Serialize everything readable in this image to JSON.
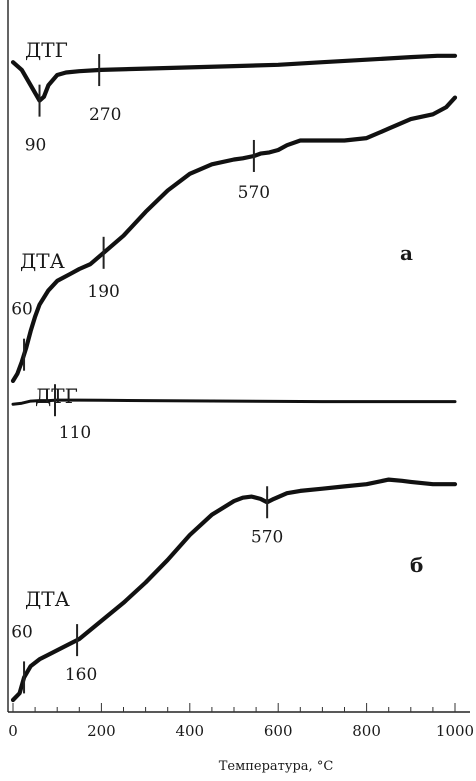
{
  "chart_data": {
    "type": "line",
    "xlabel": "Температура, °C",
    "xlim": [
      0,
      1000
    ],
    "x_ticks": [
      "0",
      "200",
      "400",
      "600",
      "800",
      "1000"
    ],
    "panels": [
      {
        "label": "а",
        "series": [
          {
            "name": "ДТГ",
            "x": [
              0,
              20,
              40,
              60,
              70,
              80,
              100,
              120,
              150,
              200,
              300,
              400,
              500,
              600,
              700,
              800,
              900,
              960,
              1000
            ],
            "y": [
              0.92,
              0.86,
              0.74,
              0.62,
              0.65,
              0.74,
              0.82,
              0.84,
              0.85,
              0.86,
              0.87,
              0.88,
              0.89,
              0.9,
              0.92,
              0.94,
              0.96,
              0.97,
              0.97
            ],
            "annotations": [
              {
                "label": "90",
                "x": 60
              },
              {
                "label": "270",
                "x": 195
              }
            ]
          },
          {
            "name": "ДТА",
            "x": [
              0,
              10,
              20,
              30,
              40,
              50,
              60,
              80,
              100,
              130,
              150,
              175,
              200,
              250,
              300,
              350,
              400,
              450,
              500,
              520,
              545,
              560,
              580,
              600,
              620,
              650,
              680,
              700,
              750,
              800,
              850,
              900,
              950,
              980,
              1000
            ],
            "y": [
              0.03,
              0.06,
              0.11,
              0.17,
              0.24,
              0.3,
              0.35,
              0.41,
              0.45,
              0.48,
              0.5,
              0.52,
              0.56,
              0.64,
              0.74,
              0.83,
              0.9,
              0.94,
              0.96,
              0.965,
              0.975,
              0.985,
              0.99,
              1.0,
              1.02,
              1.04,
              1.04,
              1.04,
              1.04,
              1.05,
              1.09,
              1.13,
              1.15,
              1.18,
              1.22
            ],
            "annotations": [
              {
                "label": "60",
                "x": 25
              },
              {
                "label": "190",
                "x": 205
              },
              {
                "label": "570",
                "x": 545
              }
            ]
          }
        ]
      },
      {
        "label": "б",
        "series": [
          {
            "name": "ДТГ",
            "x": [
              0,
              20,
              40,
              60,
              80,
              100,
              150,
              200,
              300,
              400,
              500,
              600,
              700,
              800,
              900,
              1000
            ],
            "y": [
              0.88,
              0.9,
              0.94,
              0.95,
              0.95,
              0.96,
              0.96,
              0.955,
              0.95,
              0.945,
              0.94,
              0.935,
              0.93,
              0.93,
              0.93,
              0.93
            ],
            "annotations": [
              {
                "label": "110",
                "x": 95
              }
            ]
          },
          {
            "name": "ДТА",
            "x": [
              0,
              15,
              25,
              40,
              60,
              80,
              100,
              120,
              150,
              200,
              250,
              300,
              350,
              400,
              450,
              500,
              520,
              540,
              560,
              575,
              590,
              620,
              650,
              700,
              750,
              800,
              850,
              880,
              900,
              950,
              1000
            ],
            "y": [
              0.0,
              0.03,
              0.1,
              0.15,
              0.18,
              0.2,
              0.22,
              0.24,
              0.27,
              0.35,
              0.43,
              0.52,
              0.62,
              0.73,
              0.82,
              0.88,
              0.895,
              0.9,
              0.89,
              0.875,
              0.89,
              0.915,
              0.925,
              0.935,
              0.945,
              0.955,
              0.975,
              0.97,
              0.965,
              0.955,
              0.955
            ],
            "annotations": [
              {
                "label": "60",
                "x": 25
              },
              {
                "label": "160",
                "x": 145
              },
              {
                "label": "570",
                "x": 575
              }
            ]
          }
        ]
      }
    ]
  }
}
